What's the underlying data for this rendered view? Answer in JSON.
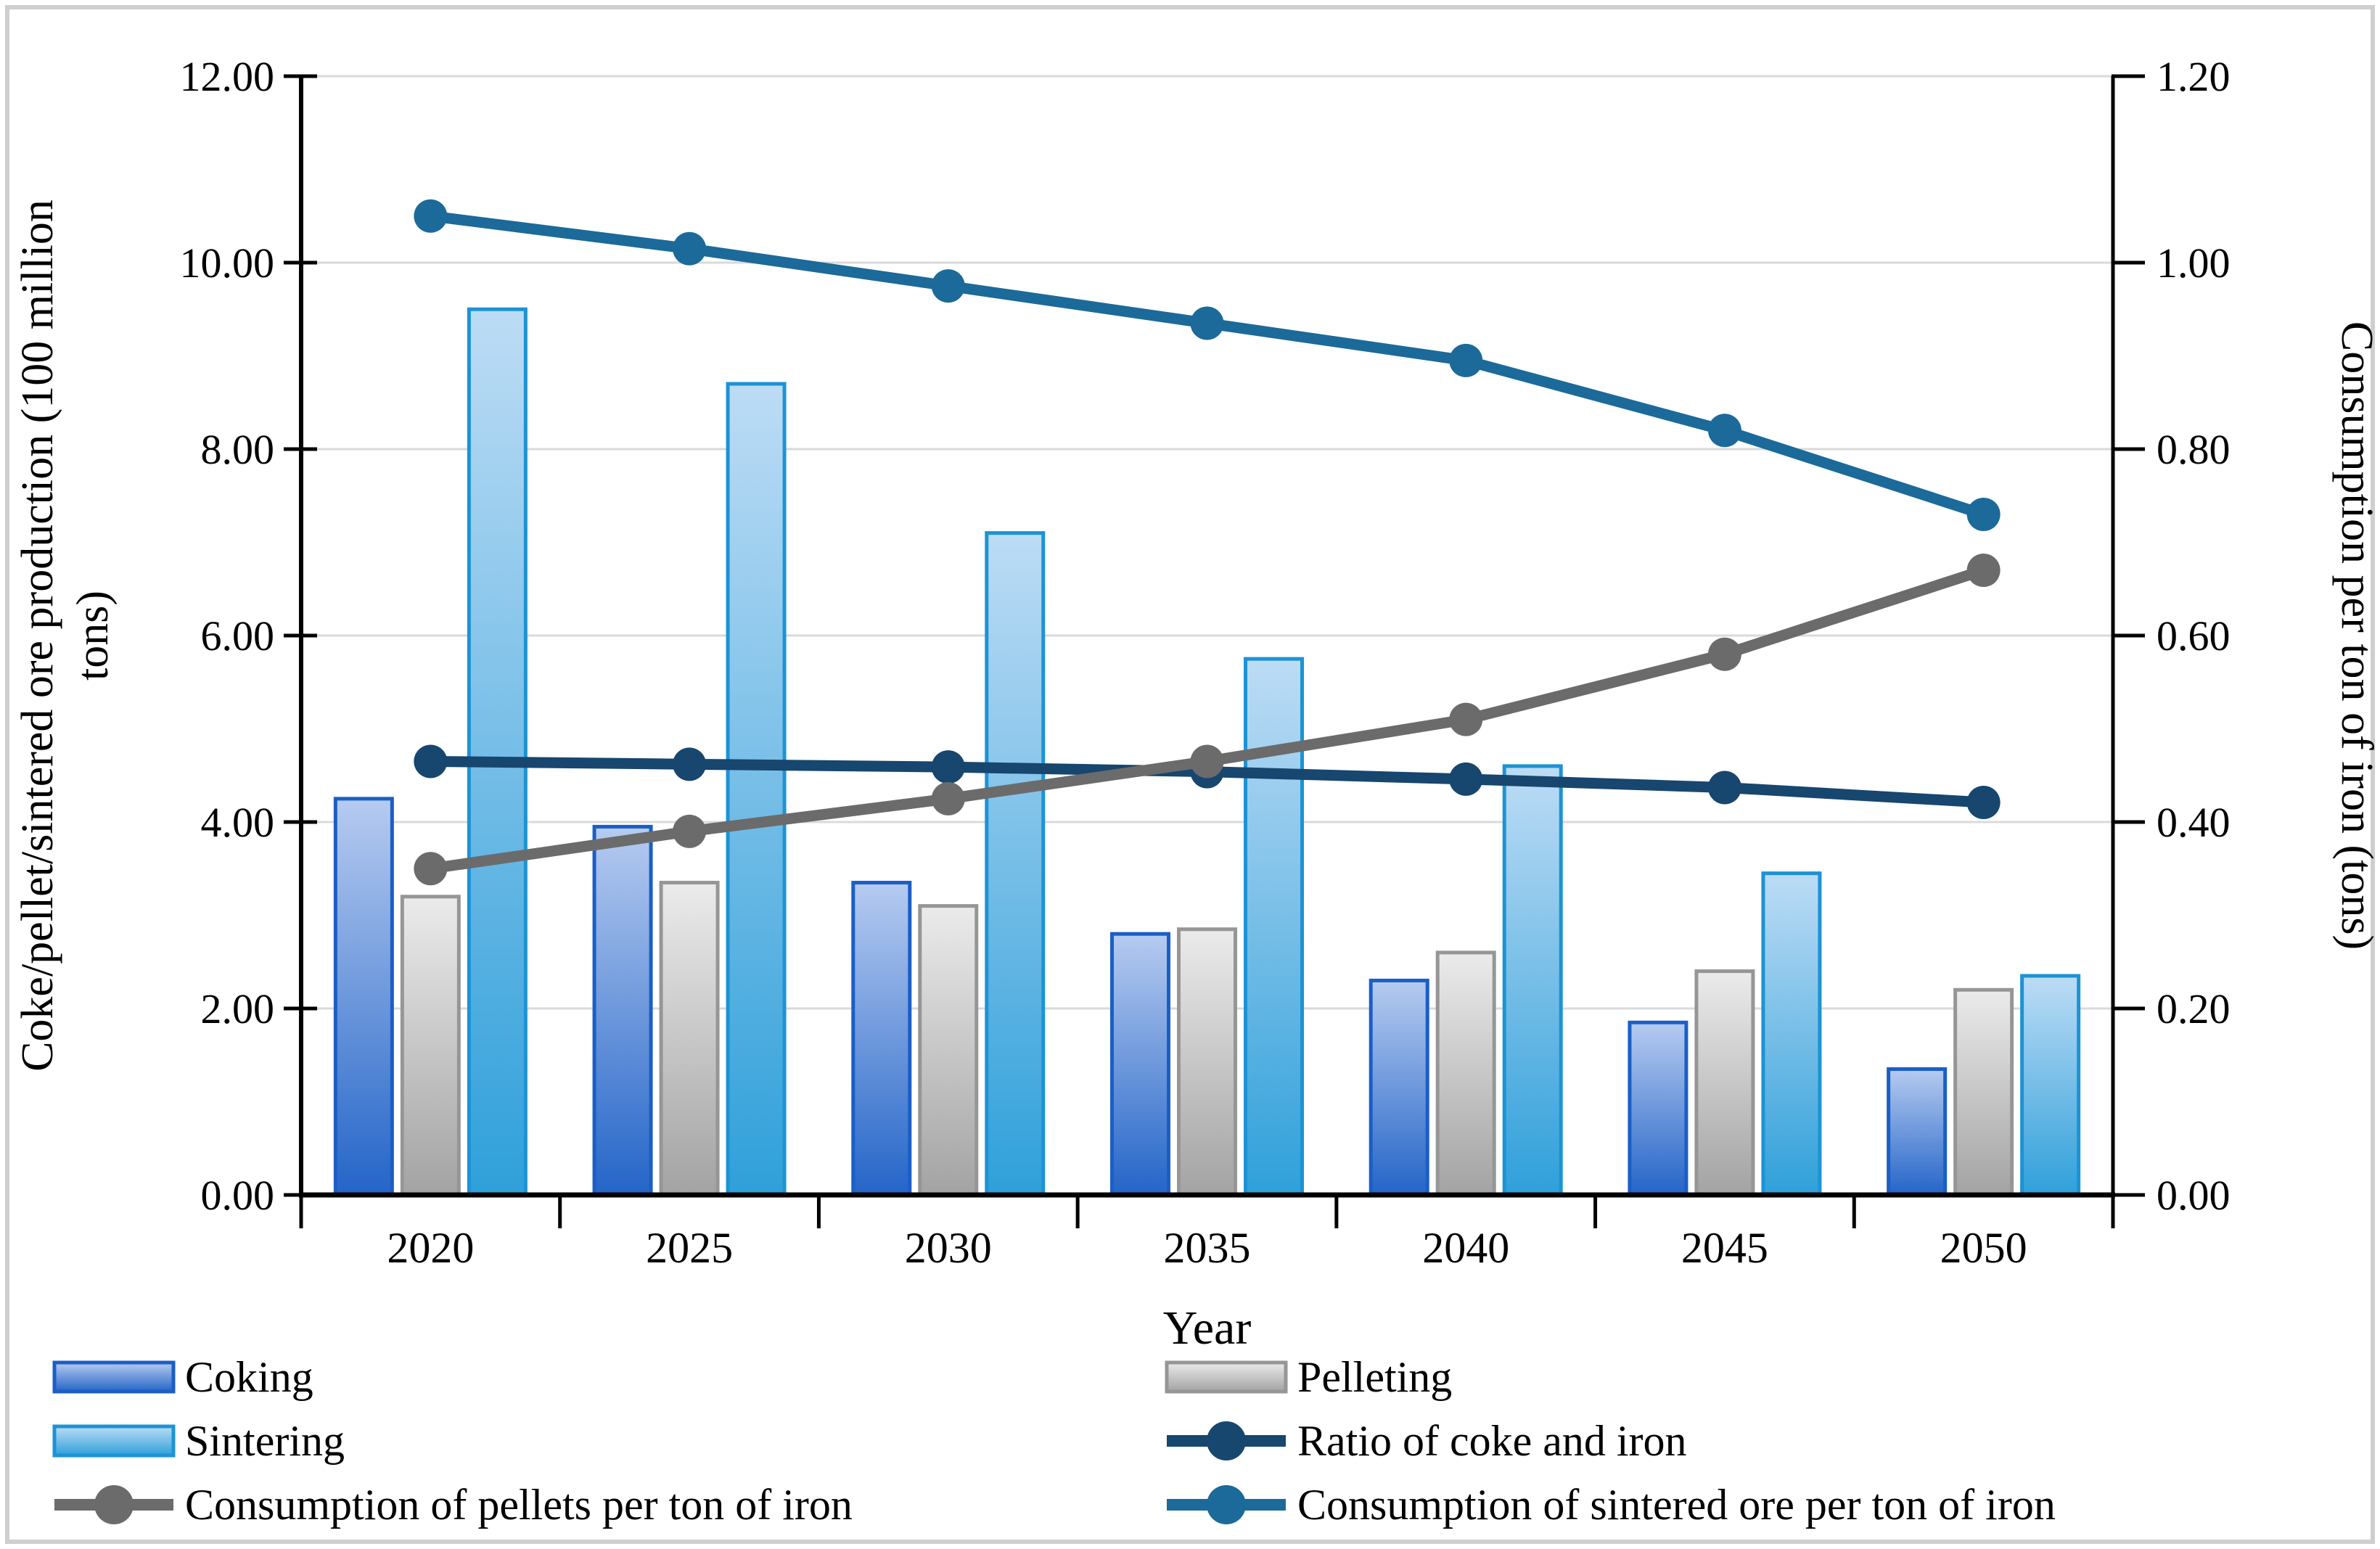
{
  "figure": {
    "background": "#ffffff",
    "border_color": "#cfcfcf"
  },
  "chart_data": {
    "type": "bar+line combo",
    "categories": [
      "2020",
      "2025",
      "2030",
      "2035",
      "2040",
      "2045",
      "2050"
    ],
    "xlabel": "Year",
    "left_axis": {
      "title_lines": [
        "Coke/pellet/sintered ore production (100 million",
        "tons)"
      ],
      "title": "Coke/pellet/sintered ore production (100 million tons)",
      "min": 0,
      "max": 12,
      "step": 2,
      "tick_labels": [
        "0.00",
        "2.00",
        "4.00",
        "6.00",
        "8.00",
        "10.00",
        "12.00"
      ]
    },
    "right_axis": {
      "title": "Consumption per ton of iron (tons)",
      "min": 0,
      "max": 1.2,
      "step": 0.2,
      "tick_labels": [
        "0.00",
        "0.20",
        "0.40",
        "0.60",
        "0.80",
        "1.00",
        "1.20"
      ]
    },
    "grid": {
      "on": true,
      "color": "#dadada"
    },
    "axis_color": "#000000",
    "bar_series": [
      {
        "name": "Coking",
        "axis": "left",
        "values": [
          4.25,
          3.95,
          3.35,
          2.8,
          2.3,
          1.85,
          1.35
        ],
        "fill_top": "#b6cbf0",
        "fill_bottom": "#2465c8",
        "border": "#1b5ec6"
      },
      {
        "name": "Pelleting",
        "axis": "left",
        "values": [
          3.2,
          3.35,
          3.1,
          2.85,
          2.6,
          2.4,
          2.2
        ],
        "fill_top": "#ebebeb",
        "fill_bottom": "#a3a3a3",
        "border": "#969696"
      },
      {
        "name": "Sintering",
        "axis": "left",
        "values": [
          9.5,
          8.7,
          7.1,
          5.75,
          4.6,
          3.45,
          2.35
        ],
        "fill_top": "#bddcf5",
        "fill_bottom": "#2fa0da",
        "border": "#1c93d4"
      }
    ],
    "line_series": [
      {
        "name": "Ratio of coke and iron",
        "axis": "right",
        "values": [
          0.465,
          0.462,
          0.459,
          0.454,
          0.446,
          0.437,
          0.421
        ],
        "color": "#17466e"
      },
      {
        "name": "Consumption of sintered ore per ton of iron",
        "axis": "right",
        "values": [
          1.05,
          1.015,
          0.975,
          0.935,
          0.895,
          0.82,
          0.73
        ],
        "color": "#1b6a99"
      },
      {
        "name": "Consumption of pellets per ton of iron",
        "axis": "right",
        "values": [
          0.35,
          0.39,
          0.425,
          0.465,
          0.51,
          0.58,
          0.67
        ],
        "color": "#6b6b6b"
      }
    ],
    "legend_position": "bottom, two columns",
    "legend_columns": [
      [
        {
          "series": "Coking",
          "type": "bar"
        },
        {
          "series": "Sintering",
          "type": "bar"
        },
        {
          "series": "Consumption of pellets per ton of iron",
          "type": "line"
        }
      ],
      [
        {
          "series": "Pelleting",
          "type": "bar"
        },
        {
          "series": "Ratio of coke and iron",
          "type": "line"
        },
        {
          "series": "Consumption of sintered ore per ton of iron",
          "type": "line"
        }
      ]
    ]
  }
}
